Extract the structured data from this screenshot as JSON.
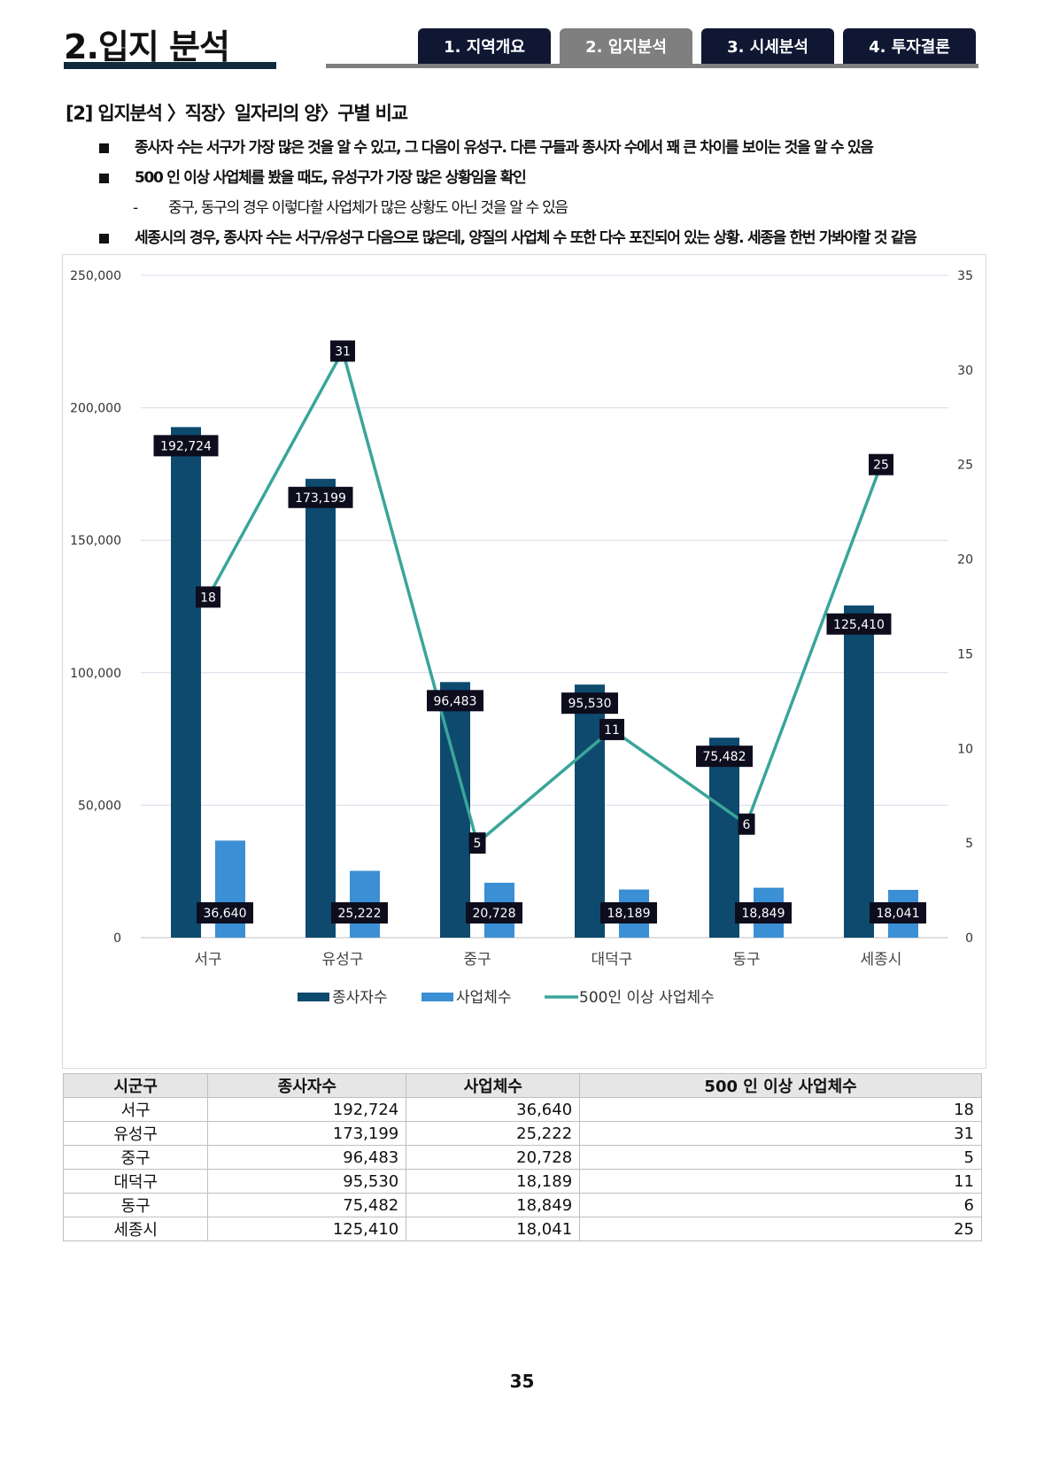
{
  "header": {
    "section_title": "2.입지 분석",
    "tabs": [
      {
        "label": "1. 지역개요",
        "active": false
      },
      {
        "label": "2. 입지분석",
        "active": true
      },
      {
        "label": "3. 시세분석",
        "active": false
      },
      {
        "label": "4. 투자결론",
        "active": false
      }
    ]
  },
  "subtitle": "[2] 입지분석 〉직장〉일자리의 양〉구별 비교",
  "bullets": [
    {
      "type": "main",
      "text": "종사자 수는 서구가 가장 많은 것을 알 수 있고, 그 다음이 유성구. 다른 구들과 종사자 수에서 꽤 큰 차이를 보이는 것을 알 수 있음"
    },
    {
      "type": "main",
      "text": "500 인 이상 사업체를 봤을 때도, 유성구가 가장 많은 상황임을 확인"
    },
    {
      "type": "sub",
      "dash": "-",
      "text": "중구, 동구의 경우 이렇다할 사업체가 많은 상황도 아닌 것을 알 수 있음"
    },
    {
      "type": "main",
      "text": "세종시의 경우, 종사자 수는 서구/유성구 다음으로 많은데, 양질의 사업체 수 또한 다수 포진되어 있는 상황. 세종을 한번 가봐야할 것 같음"
    }
  ],
  "chart_data": {
    "type": "bar",
    "categories": [
      "서구",
      "유성구",
      "중구",
      "대덕구",
      "동구",
      "세종시"
    ],
    "series": [
      {
        "name": "종사자수",
        "type": "bar",
        "axis": "left",
        "color": "#0d4a6e",
        "values": [
          192724,
          173199,
          96483,
          95530,
          75482,
          125410
        ],
        "labels": [
          "192,724",
          "173,199",
          "96,483",
          "95,530",
          "75,482",
          "125,410"
        ]
      },
      {
        "name": "사업체수",
        "type": "bar",
        "axis": "left",
        "color": "#3b8fd4",
        "values": [
          36640,
          25222,
          20728,
          18189,
          18849,
          18041
        ],
        "labels": [
          "36,640",
          "25,222",
          "20,728",
          "18,189",
          "18,849",
          "18,041"
        ]
      },
      {
        "name": "500인 이상 사업체수",
        "type": "line",
        "axis": "right",
        "color": "#3aa59a",
        "values": [
          18,
          31,
          5,
          11,
          6,
          25
        ],
        "labels": [
          "18",
          "31",
          "5",
          "11",
          "6",
          "25"
        ]
      }
    ],
    "y_left": {
      "min": 0,
      "max": 250000,
      "ticks": [
        0,
        50000,
        100000,
        150000,
        200000,
        250000
      ],
      "tick_labels": [
        "0",
        "50,000",
        "100,000",
        "150,000",
        "200,000",
        "250,000"
      ]
    },
    "y_right": {
      "min": 0,
      "max": 35,
      "ticks": [
        0,
        5,
        10,
        15,
        20,
        25,
        30,
        35
      ],
      "tick_labels": [
        "0",
        "5",
        "10",
        "15",
        "20",
        "25",
        "30",
        "35"
      ]
    },
    "grid": true,
    "legend_position": "bottom",
    "title": "",
    "xlabel": "",
    "ylabel": ""
  },
  "table": {
    "headers": [
      "시군구",
      "종사자수",
      "사업체수",
      "500 인 이상 사업체수"
    ],
    "rows": [
      [
        "서구",
        "192,724",
        "36,640",
        "18"
      ],
      [
        "유성구",
        "173,199",
        "25,222",
        "31"
      ],
      [
        "중구",
        "96,483",
        "20,728",
        "5"
      ],
      [
        "대덕구",
        "95,530",
        "18,189",
        "11"
      ],
      [
        "동구",
        "75,482",
        "18,849",
        "6"
      ],
      [
        "세종시",
        "125,410",
        "18,041",
        "25"
      ]
    ]
  },
  "page_number": "35"
}
